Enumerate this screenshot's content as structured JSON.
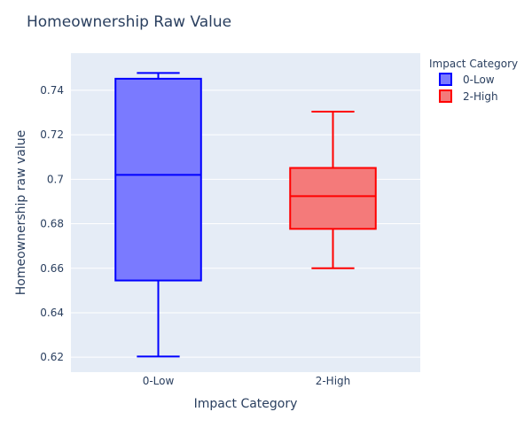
{
  "chart_data": {
    "type": "box",
    "title": "Homeownership Raw Value",
    "xlabel": "Impact Category",
    "ylabel": "Homeownership raw value",
    "categories": [
      "0-Low",
      "2-High"
    ],
    "ylim": [
      0.6133,
      0.7567
    ],
    "yticks": [
      0.62,
      0.64,
      0.66,
      0.68,
      0.7,
      0.72,
      0.74
    ],
    "ytick_labels": [
      "0.62",
      "0.64",
      "0.66",
      "0.68",
      "0.7",
      "0.72",
      "0.74"
    ],
    "grid": true,
    "legend": {
      "title": "Impact Category",
      "placement": "top-right"
    },
    "series": [
      {
        "name": "0-Low",
        "category": "0-Low",
        "min": 0.6203,
        "q1": 0.6545,
        "median": 0.702,
        "q3": 0.7452,
        "max": 0.7478,
        "color": "#0000ff",
        "fill": "#7a7aff"
      },
      {
        "name": "2-High",
        "category": "2-High",
        "min": 0.66,
        "q1": 0.6777,
        "median": 0.6924,
        "q3": 0.7051,
        "max": 0.7304,
        "color": "#ff0000",
        "fill": "#f47a7a"
      }
    ]
  },
  "colors": {
    "plot_bg": "#e5ecf6",
    "grid": "#ffffff",
    "text": "#2a3f5f"
  }
}
